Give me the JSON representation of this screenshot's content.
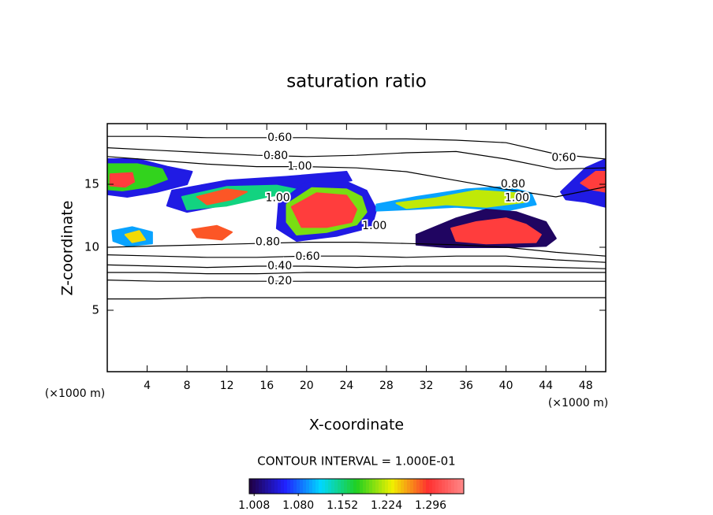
{
  "chart_data": {
    "type": "contour",
    "title": "saturation ratio",
    "x_label": "X-coordinate",
    "y_label": "Z-coordinate",
    "x_unit": "(×1000 m)",
    "y_unit": "(×1000 m)",
    "xlim": [
      0,
      50
    ],
    "ylim": [
      0,
      20
    ],
    "xticks": [
      4,
      8,
      12,
      16,
      20,
      24,
      28,
      32,
      36,
      40,
      44,
      48
    ],
    "yticks": [
      5,
      10,
      15
    ],
    "contour_interval_text": "CONTOUR INTERVAL = 1.000E-01",
    "line_color": "#000000",
    "contour_lines": [
      {
        "level": 0.1,
        "x": [
          0,
          5,
          10,
          15,
          20,
          25,
          30,
          35,
          40,
          45,
          50
        ],
        "y": [
          5.9,
          5.9,
          6.0,
          6.0,
          6.0,
          6.0,
          6.0,
          6.0,
          6.0,
          6.0,
          6.0
        ]
      },
      {
        "level": 0.2,
        "x": [
          0,
          5,
          10,
          15,
          20,
          25,
          30,
          35,
          40,
          45,
          50
        ],
        "y": [
          7.4,
          7.3,
          7.3,
          7.3,
          7.3,
          7.3,
          7.3,
          7.3,
          7.3,
          7.3,
          7.3
        ]
      },
      {
        "level": 0.3,
        "x": [
          0,
          5,
          10,
          15,
          20,
          25,
          30,
          35,
          40,
          45,
          50
        ],
        "y": [
          8.0,
          8.0,
          7.9,
          7.9,
          8.0,
          8.0,
          8.0,
          8.0,
          8.0,
          8.0,
          8.0
        ]
      },
      {
        "level": 0.4,
        "x": [
          0,
          5,
          10,
          15,
          20,
          25,
          30,
          35,
          40,
          45,
          50
        ],
        "y": [
          8.6,
          8.5,
          8.4,
          8.5,
          8.5,
          8.4,
          8.5,
          8.5,
          8.5,
          8.4,
          8.3
        ]
      },
      {
        "level": 0.6,
        "x": [
          0,
          5,
          10,
          15,
          20,
          25,
          30,
          35,
          40,
          45,
          50
        ],
        "y": [
          9.4,
          9.3,
          9.2,
          9.2,
          9.3,
          9.3,
          9.2,
          9.3,
          9.3,
          9.0,
          8.8
        ]
      },
      {
        "level": 0.8,
        "x": [
          0,
          5,
          10,
          15,
          20,
          25,
          30,
          35,
          40,
          45,
          50
        ],
        "y": [
          10.0,
          10.1,
          10.2,
          10.3,
          10.4,
          10.4,
          10.3,
          10.2,
          10.0,
          9.6,
          9.3
        ]
      },
      {
        "level": 0.6,
        "x": [
          0,
          5,
          10,
          15,
          20,
          25,
          30,
          35,
          40,
          45,
          50
        ],
        "y": [
          18.8,
          18.8,
          18.7,
          18.7,
          18.7,
          18.6,
          18.6,
          18.5,
          18.3,
          17.4,
          17.0
        ]
      },
      {
        "level": 0.8,
        "x": [
          0,
          5,
          10,
          15,
          20,
          25,
          30,
          35,
          40,
          45,
          50
        ],
        "y": [
          17.9,
          17.7,
          17.5,
          17.3,
          17.2,
          17.3,
          17.5,
          17.6,
          17.0,
          16.2,
          16.3
        ]
      },
      {
        "level": 1.0,
        "x": [
          0,
          5,
          10,
          15,
          20,
          25,
          30,
          35,
          40,
          45,
          50
        ],
        "y": [
          17.2,
          16.9,
          16.6,
          16.4,
          16.4,
          16.3,
          16.0,
          15.3,
          14.6,
          14.0,
          14.8
        ]
      }
    ],
    "contour_labels": [
      {
        "value": 0.6,
        "label": "0.60",
        "x": 17.3,
        "y": 18.7
      },
      {
        "value": 0.8,
        "label": "0.80",
        "x": 16.9,
        "y": 17.25
      },
      {
        "value": 1.0,
        "label": "1.00",
        "x": 19.3,
        "y": 16.4
      },
      {
        "value": 1.0,
        "label": "1.00",
        "x": 17.1,
        "y": 13.9
      },
      {
        "value": 0.8,
        "label": "0.80",
        "x": 16.1,
        "y": 10.4
      },
      {
        "value": 0.6,
        "label": "0.60",
        "x": 20.1,
        "y": 9.25
      },
      {
        "value": 0.4,
        "label": "0.40",
        "x": 17.3,
        "y": 8.5
      },
      {
        "value": 0.2,
        "label": "0.20",
        "x": 17.3,
        "y": 7.3
      },
      {
        "value": 1.0,
        "label": "1.00",
        "x": 26.8,
        "y": 11.7
      },
      {
        "value": 0.8,
        "label": "0.80",
        "x": 40.7,
        "y": 15.0
      },
      {
        "value": 1.0,
        "label": "1.00",
        "x": 41.1,
        "y": 13.9
      },
      {
        "value": 0.6,
        "label": "0.60",
        "x": 45.8,
        "y": 17.1
      }
    ],
    "clim": [
      1.0,
      1.35
    ],
    "colormap": [
      "#200040",
      "#2020ff",
      "#00d8ff",
      "#20d020",
      "#f0f000",
      "#ff3030",
      "#ff8888"
    ],
    "colorbar_ticks": [
      {
        "value": 1.008,
        "label": "1.008"
      },
      {
        "value": 1.08,
        "label": "1.080"
      },
      {
        "value": 1.152,
        "label": "1.152"
      },
      {
        "value": 1.224,
        "label": "1.224"
      },
      {
        "value": 1.296,
        "label": "1.296"
      }
    ],
    "regions": [
      {
        "value": 1.05,
        "x": [
          0,
          3,
          6,
          8.5,
          8,
          5,
          2,
          0
        ],
        "y": [
          17.0,
          17.0,
          16.4,
          16.0,
          15.0,
          14.4,
          14.0,
          14.2
        ]
      },
      {
        "value": 1.18,
        "x": [
          0,
          3,
          5.5,
          6,
          4,
          1.5,
          0
        ],
        "y": [
          16.6,
          16.6,
          16.2,
          15.4,
          14.8,
          14.5,
          14.6
        ]
      },
      {
        "value": 1.3,
        "x": [
          0.3,
          2.5,
          2.7,
          1.8,
          0.3
        ],
        "y": [
          15.8,
          15.9,
          15.2,
          14.8,
          14.9
        ]
      },
      {
        "value": 1.05,
        "x": [
          6.5,
          12,
          18,
          24,
          24.5,
          20,
          14,
          8,
          6
        ],
        "y": [
          14.5,
          15.3,
          15.6,
          16.0,
          15.3,
          14.7,
          13.7,
          12.8,
          13.3
        ]
      },
      {
        "value": 1.15,
        "x": [
          7.5,
          12,
          17,
          19.5,
          16,
          12,
          8
        ],
        "y": [
          14.0,
          14.8,
          14.9,
          14.5,
          14.0,
          13.3,
          13.0
        ]
      },
      {
        "value": 1.28,
        "x": [
          9,
          12,
          14,
          12.5,
          10
        ],
        "y": [
          14.0,
          14.6,
          14.4,
          13.8,
          13.4
        ]
      },
      {
        "value": 1.05,
        "x": [
          17.2,
          20,
          24,
          26,
          27,
          26.5,
          23,
          19,
          17
        ],
        "y": [
          13.5,
          15.2,
          15.2,
          14.5,
          13.0,
          11.6,
          10.9,
          10.5,
          11.5
        ]
      },
      {
        "value": 1.2,
        "x": [
          18,
          20.5,
          24,
          25.5,
          26,
          25,
          22,
          19,
          18
        ],
        "y": [
          13.4,
          14.7,
          14.6,
          14.0,
          12.8,
          11.8,
          11.2,
          11.0,
          12.0
        ]
      },
      {
        "value": 1.3,
        "x": [
          18.5,
          21,
          24,
          25,
          24.5,
          22,
          19.5
        ],
        "y": [
          13.2,
          14.3,
          14.1,
          13.0,
          12.0,
          11.6,
          11.6
        ]
      },
      {
        "value": 1.1,
        "x": [
          27,
          31,
          36,
          40,
          42.5,
          43,
          40,
          35,
          30,
          27
        ],
        "y": [
          13.4,
          14.0,
          14.6,
          14.8,
          14.3,
          13.4,
          12.9,
          13.2,
          13.0,
          12.9
        ]
      },
      {
        "value": 1.22,
        "x": [
          29,
          33,
          37,
          41,
          42,
          38,
          34,
          30
        ],
        "y": [
          13.5,
          13.9,
          14.5,
          14.3,
          13.6,
          13.2,
          13.4,
          13.1
        ]
      },
      {
        "value": 1.01,
        "x": [
          31,
          35,
          38,
          41,
          44,
          45,
          44,
          40,
          34,
          31
        ],
        "y": [
          11.0,
          12.3,
          13.0,
          12.8,
          12.0,
          10.7,
          10.1,
          10.0,
          10.0,
          10.2
        ]
      },
      {
        "value": 1.3,
        "x": [
          34.5,
          37,
          40,
          42,
          43.5,
          43,
          38,
          35
        ],
        "y": [
          11.5,
          12.0,
          12.3,
          11.8,
          11.0,
          10.4,
          10.3,
          10.5
        ]
      },
      {
        "value": 1.05,
        "x": [
          45.5,
          48,
          50,
          50,
          48,
          46
        ],
        "y": [
          14.4,
          16.3,
          17.0,
          13.2,
          13.6,
          13.8
        ]
      },
      {
        "value": 1.3,
        "x": [
          47.5,
          49,
          50,
          50,
          48.5
        ],
        "y": [
          15.1,
          16.0,
          16.0,
          14.4,
          14.6
        ]
      },
      {
        "value": 1.1,
        "x": [
          0.5,
          2.5,
          4.5,
          4.5,
          2,
          0.6
        ],
        "y": [
          11.3,
          11.6,
          11.2,
          10.3,
          10.1,
          10.5
        ]
      },
      {
        "value": 1.24,
        "x": [
          1.8,
          3.2,
          3.8,
          2.5
        ],
        "y": [
          11.0,
          11.3,
          10.6,
          10.4
        ]
      },
      {
        "value": 1.28,
        "x": [
          8.5,
          11,
          12.5,
          11.5,
          9
        ],
        "y": [
          11.4,
          11.7,
          11.2,
          10.6,
          10.8
        ]
      }
    ]
  }
}
